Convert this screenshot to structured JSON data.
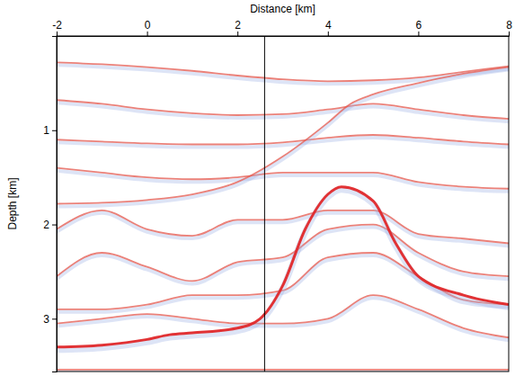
{
  "chart_data": {
    "type": "line",
    "x_label": "Distance [km]",
    "y_label": "Depth [km]",
    "xlim": [
      -2,
      8
    ],
    "ylim": [
      0,
      3.56
    ],
    "xticks": [
      -2,
      0,
      2,
      4,
      6,
      8
    ],
    "yticks": [
      1,
      2,
      3
    ],
    "vline_x": 2.6,
    "grid": false,
    "series": [
      {
        "color": "#e4574c",
        "x": [
          -2,
          -1,
          0,
          1,
          2,
          3,
          4,
          5,
          6,
          7,
          8
        ],
        "values": [
          0.28,
          0.3,
          0.33,
          0.37,
          0.42,
          0.46,
          0.48,
          0.47,
          0.44,
          0.38,
          0.32
        ]
      },
      {
        "color": "#e4574c",
        "x": [
          -2,
          -1,
          0,
          1,
          2,
          3,
          4,
          5,
          6,
          7,
          8
        ],
        "values": [
          0.68,
          0.72,
          0.78,
          0.82,
          0.84,
          0.83,
          0.78,
          0.72,
          0.78,
          0.84,
          0.88
        ]
      },
      {
        "color": "#e4574c",
        "x": [
          -2,
          -1,
          0,
          1,
          2,
          3,
          4,
          5,
          6,
          7,
          8
        ],
        "values": [
          1.1,
          1.12,
          1.14,
          1.15,
          1.15,
          1.13,
          1.08,
          1.05,
          1.08,
          1.12,
          1.15
        ]
      },
      {
        "color": "#e4574c",
        "x": [
          -2,
          -1,
          0,
          1,
          2,
          3,
          4,
          5,
          6,
          7,
          8
        ],
        "values": [
          1.4,
          1.45,
          1.5,
          1.52,
          1.5,
          1.45,
          1.45,
          1.45,
          1.55,
          1.6,
          1.62
        ]
      },
      {
        "color": "#e4574c",
        "x": [
          -2,
          -1,
          0,
          1,
          2,
          3,
          4,
          4.5,
          5,
          6,
          7,
          8
        ],
        "values": [
          1.78,
          1.77,
          1.74,
          1.68,
          1.55,
          1.28,
          0.92,
          0.72,
          0.62,
          0.5,
          0.4,
          0.33
        ]
      },
      {
        "color": "#e4574c",
        "x": [
          -2,
          -1,
          0,
          1,
          2,
          3,
          4,
          5,
          6,
          7,
          8
        ],
        "values": [
          2.05,
          1.85,
          2.05,
          2.12,
          1.95,
          1.95,
          1.85,
          1.85,
          2.1,
          2.15,
          2.2
        ]
      },
      {
        "color": "#e4574c",
        "x": [
          -2,
          -1,
          0,
          1,
          2,
          3,
          4,
          5,
          6,
          7,
          8
        ],
        "values": [
          2.55,
          2.3,
          2.45,
          2.6,
          2.4,
          2.35,
          2.05,
          2.0,
          2.3,
          2.5,
          2.55
        ]
      },
      {
        "color": "#e4574c",
        "x": [
          -2,
          -1,
          0,
          1,
          2,
          3,
          4,
          5,
          6,
          7,
          8
        ],
        "values": [
          2.9,
          2.9,
          2.85,
          2.75,
          2.75,
          2.7,
          2.35,
          2.3,
          2.55,
          2.8,
          2.85
        ]
      },
      {
        "color": "#e4574c",
        "x": [
          -2,
          -1,
          0,
          1,
          2,
          3,
          4,
          5,
          6,
          7,
          8
        ],
        "values": [
          3.05,
          3.0,
          2.95,
          3.0,
          3.05,
          3.05,
          3.0,
          2.75,
          2.9,
          3.1,
          3.2
        ]
      },
      {
        "color": "#e0282a",
        "x": [
          -2,
          -1,
          0,
          0.5,
          1,
          2,
          2.5,
          3,
          3.5,
          4,
          4.3,
          5,
          5.5,
          6,
          7,
          8
        ],
        "values": [
          3.3,
          3.28,
          3.22,
          3.17,
          3.15,
          3.1,
          3.0,
          2.65,
          2.05,
          1.68,
          1.6,
          1.75,
          2.2,
          2.55,
          2.75,
          2.85
        ]
      },
      {
        "color": "#e4574c",
        "x": [
          -2,
          0,
          2,
          4,
          6,
          8
        ],
        "values": [
          3.54,
          3.54,
          3.54,
          3.54,
          3.54,
          3.54
        ]
      }
    ]
  }
}
